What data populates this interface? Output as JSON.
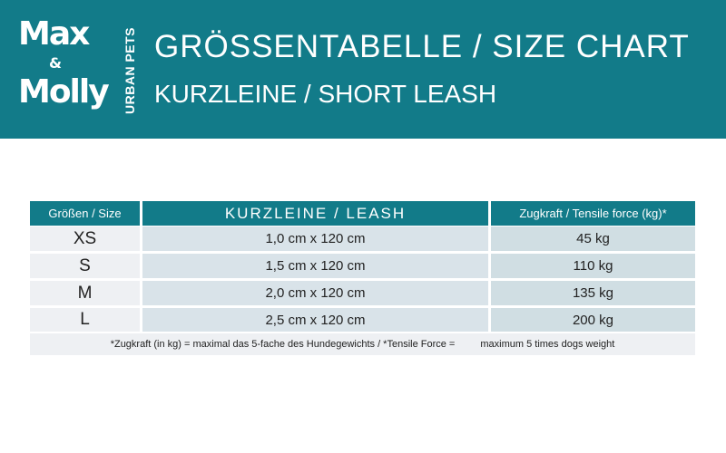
{
  "header": {
    "logo": {
      "line1": "Max",
      "amp": "&",
      "line2": "Molly",
      "tagline": "URBAN PETS"
    },
    "title": "GRÖSSENTABELLE / SIZE CHART",
    "subtitle": "KURZLEINE / SHORT LEASH"
  },
  "colors": {
    "brand_teal": "#127b89"
  },
  "table": {
    "columns": [
      "Größen / Size",
      "KURZLEINE / LEASH",
      "Zugkraft / Tensile force (kg)*"
    ],
    "rows": [
      {
        "size": "XS",
        "leash": "1,0 cm x 120 cm",
        "force": "45 kg"
      },
      {
        "size": "S",
        "leash": "1,5 cm x 120 cm",
        "force": "110 kg"
      },
      {
        "size": "M",
        "leash": "2,0 cm x 120 cm",
        "force": "135 kg"
      },
      {
        "size": "L",
        "leash": "2,5 cm x 120 cm",
        "force": "200 kg"
      }
    ],
    "footnote_de": "*Zugkraft (in kg) = maximal das 5-fache des Hundegewichts / *Tensile Force =",
    "footnote_en": "maximum 5 times dogs weight"
  }
}
